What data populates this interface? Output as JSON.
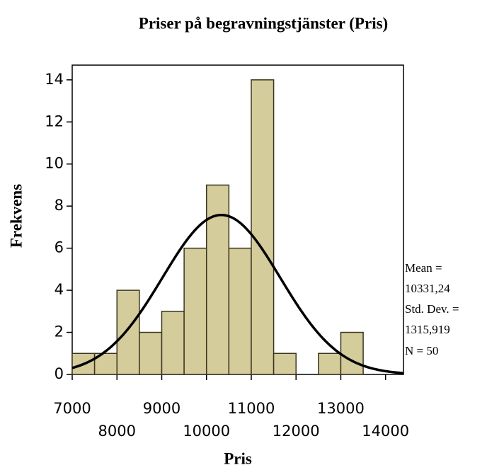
{
  "chart_data": {
    "type": "histogram",
    "title": "Priser på begravningstjänster (Pris)",
    "xlabel": "Pris",
    "ylabel": "Frekvens",
    "bins": [
      7000,
      7500,
      8000,
      8500,
      9000,
      9500,
      10000,
      10500,
      11000,
      11500,
      12000,
      12500,
      13000,
      13500
    ],
    "values": [
      1,
      1,
      4,
      2,
      3,
      6,
      9,
      6,
      14,
      1,
      0,
      1,
      2
    ],
    "color": "#d4cc9a",
    "edge_color": "#3a3520",
    "curve_color": "#000000",
    "xlim": [
      7000,
      14400
    ],
    "xticks": [
      7000,
      8000,
      9000,
      10000,
      11000,
      12000,
      13000,
      14000
    ],
    "ylim": [
      0,
      14.7
    ],
    "yticks": [
      0,
      2,
      4,
      6,
      8,
      10,
      12,
      14
    ],
    "stats": {
      "mean_label": "Mean =",
      "mean": {
        "value": 10331.24,
        "label": "10331,24"
      },
      "sd_label": "Std. Dev. =",
      "sd": {
        "value": 1315.919,
        "label": "1315,919"
      },
      "n_label": "N =",
      "n": 50
    }
  }
}
